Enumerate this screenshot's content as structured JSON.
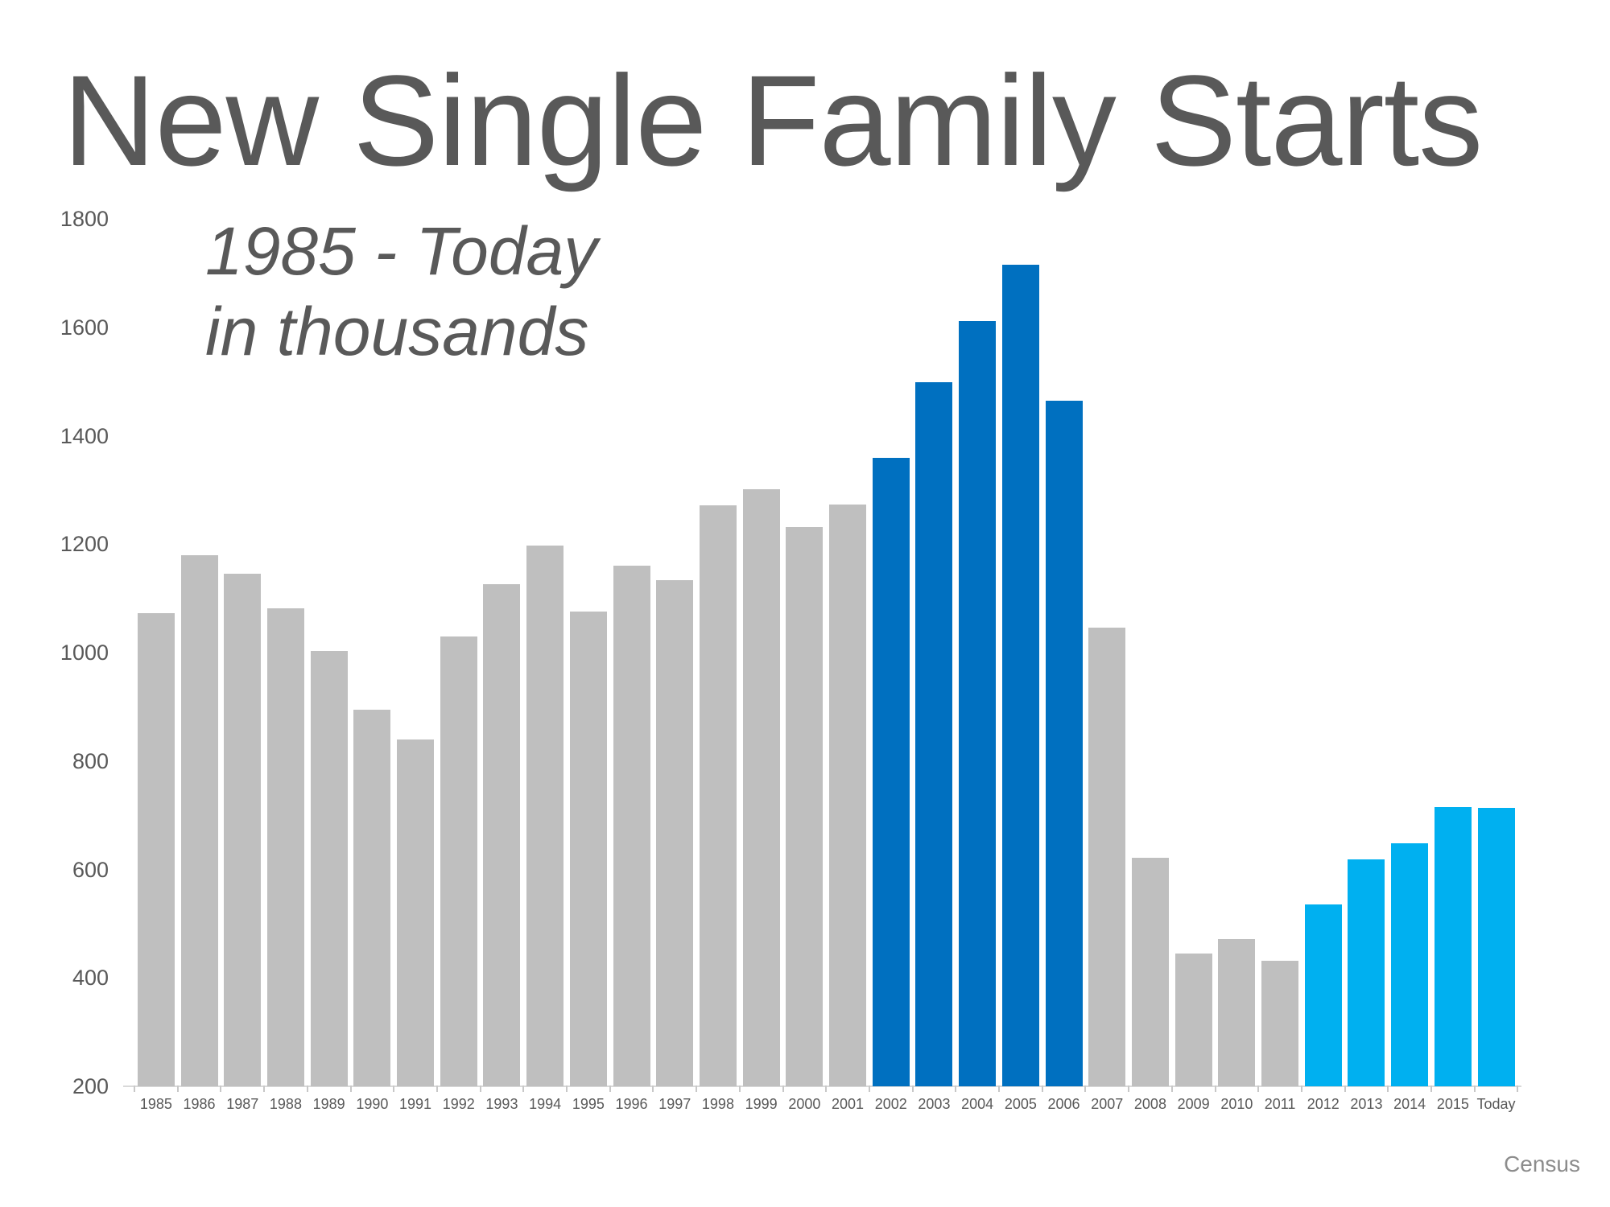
{
  "header": {
    "title": "New Single Family Starts",
    "subtitle_line1": "1985 - Today",
    "subtitle_line2": "in thousands"
  },
  "source": {
    "label": "Census"
  },
  "colors": {
    "title_text": "#595959",
    "axis_text": "#595959",
    "source_text": "#8C8C8C",
    "axis_line": "#D9D9D9",
    "tick": "#C8C8C8",
    "bar_gray": "#BFBFBF",
    "bar_dark_blue": "#0070C0",
    "bar_light_blue": "#00B0F0"
  },
  "chart_data": {
    "type": "bar",
    "title": "New Single Family Starts",
    "subtitle": "1985 - Today in thousands",
    "unit": "thousands of housing starts",
    "categories": [
      "1985",
      "1986",
      "1987",
      "1988",
      "1989",
      "1990",
      "1991",
      "1992",
      "1993",
      "1994",
      "1995",
      "1996",
      "1997",
      "1998",
      "1999",
      "2000",
      "2001",
      "2002",
      "2003",
      "2004",
      "2005",
      "2006",
      "2007",
      "2008",
      "2009",
      "2010",
      "2011",
      "2012",
      "2013",
      "2014",
      "2015",
      "Today"
    ],
    "values": [
      1072,
      1179,
      1146,
      1081,
      1003,
      895,
      840,
      1030,
      1126,
      1198,
      1076,
      1161,
      1134,
      1271,
      1302,
      1231,
      1273,
      1359,
      1499,
      1611,
      1716,
      1465,
      1046,
      622,
      445,
      471,
      431,
      535,
      618,
      648,
      715,
      713
    ],
    "ylim": [
      200,
      1800
    ],
    "yticks": [
      1800,
      1600,
      1400,
      1200,
      1000,
      800,
      600,
      400,
      200
    ],
    "grid": false,
    "legend": false,
    "segments": [
      {
        "from": 0,
        "to": 16,
        "color": "#BFBFBF"
      },
      {
        "from": 17,
        "to": 21,
        "color": "#0070C0"
      },
      {
        "from": 22,
        "to": 26,
        "color": "#BFBFBF"
      },
      {
        "from": 27,
        "to": 31,
        "color": "#00B0F0"
      }
    ]
  }
}
